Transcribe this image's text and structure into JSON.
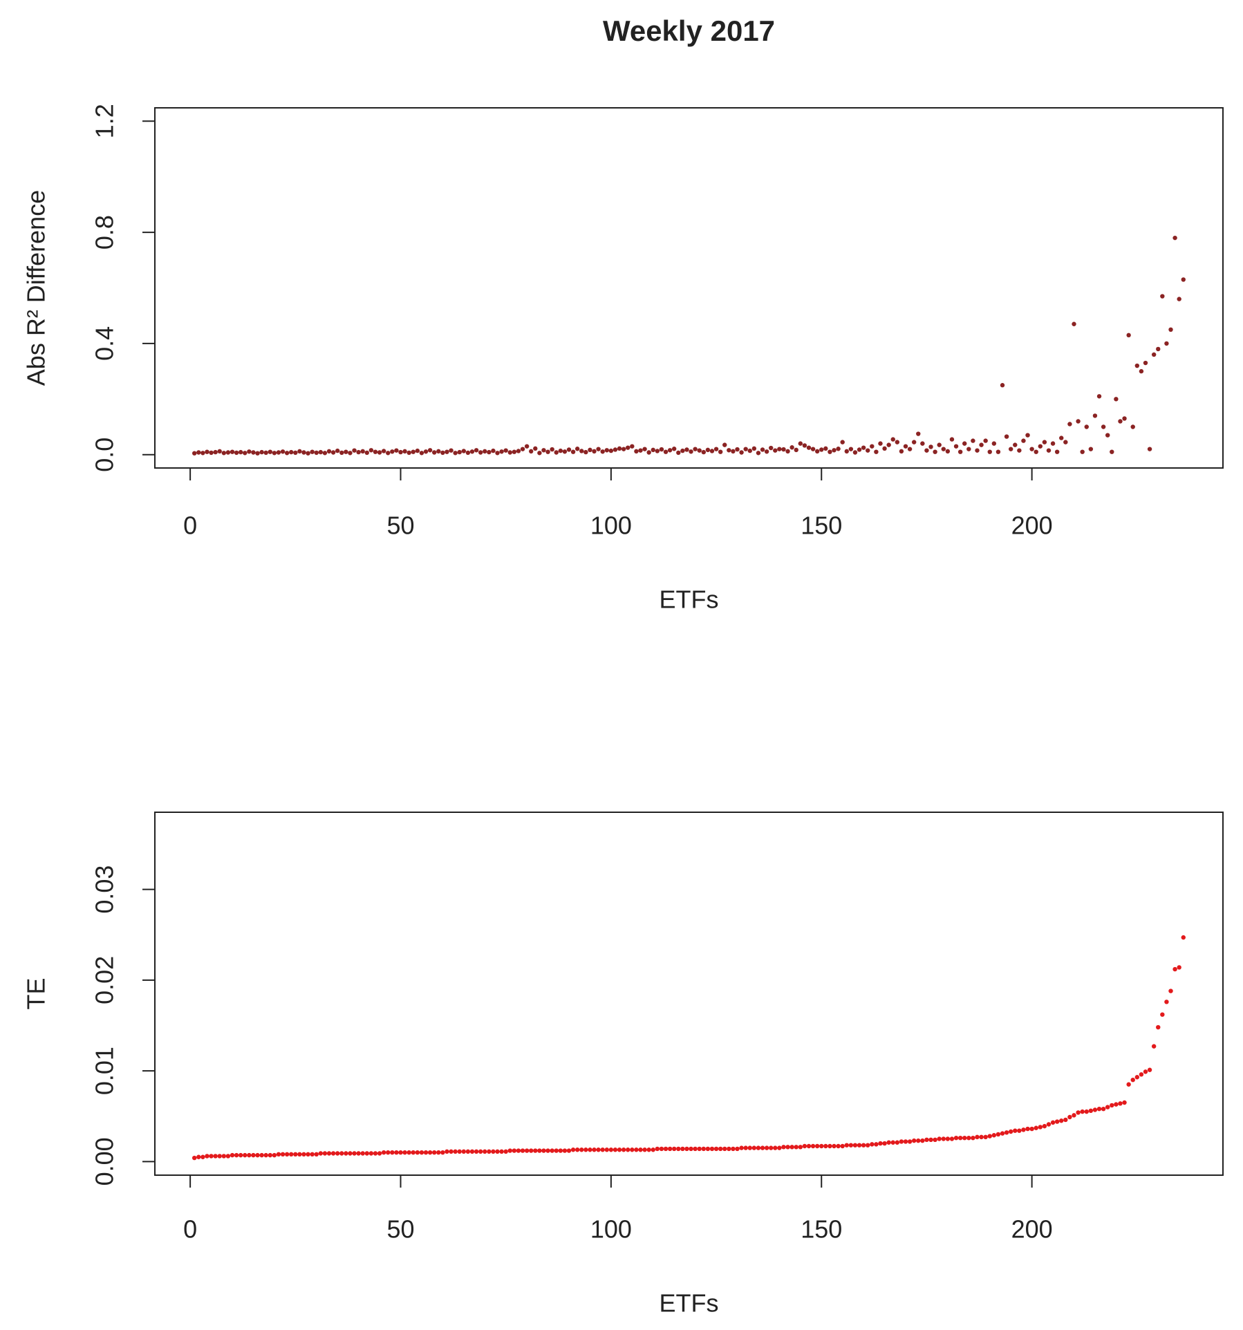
{
  "chart_data": [
    {
      "type": "scatter",
      "title": "Weekly 2017",
      "xlabel": "ETFs",
      "ylabel": "Abs R² Difference",
      "color": "#8b2323",
      "xlim": [
        -8.4,
        245.4
      ],
      "xticks": [
        0,
        50,
        100,
        150,
        200
      ],
      "ylim": [
        -0.048,
        1.248
      ],
      "yticks": [
        {
          "value": 0,
          "label": "0.0"
        },
        0.4,
        0.8,
        1.2
      ],
      "x": [
        1,
        2,
        3,
        4,
        5,
        6,
        7,
        8,
        9,
        10,
        11,
        12,
        13,
        14,
        15,
        16,
        17,
        18,
        19,
        20,
        21,
        22,
        23,
        24,
        25,
        26,
        27,
        28,
        29,
        30,
        31,
        32,
        33,
        34,
        35,
        36,
        37,
        38,
        39,
        40,
        41,
        42,
        43,
        44,
        45,
        46,
        47,
        48,
        49,
        50,
        51,
        52,
        53,
        54,
        55,
        56,
        57,
        58,
        59,
        60,
        61,
        62,
        63,
        64,
        65,
        66,
        67,
        68,
        69,
        70,
        71,
        72,
        73,
        74,
        75,
        76,
        77,
        78,
        79,
        80,
        81,
        82,
        83,
        84,
        85,
        86,
        87,
        88,
        89,
        90,
        91,
        92,
        93,
        94,
        95,
        96,
        97,
        98,
        99,
        100,
        101,
        102,
        103,
        104,
        105,
        106,
        107,
        108,
        109,
        110,
        111,
        112,
        113,
        114,
        115,
        116,
        117,
        118,
        119,
        120,
        121,
        122,
        123,
        124,
        125,
        126,
        127,
        128,
        129,
        130,
        131,
        132,
        133,
        134,
        135,
        136,
        137,
        138,
        139,
        140,
        141,
        142,
        143,
        144,
        145,
        146,
        147,
        148,
        149,
        150,
        151,
        152,
        153,
        154,
        155,
        156,
        157,
        158,
        159,
        160,
        161,
        162,
        163,
        164,
        165,
        166,
        167,
        168,
        169,
        170,
        171,
        172,
        173,
        174,
        175,
        176,
        177,
        178,
        179,
        180,
        181,
        182,
        183,
        184,
        185,
        186,
        187,
        188,
        189,
        190,
        191,
        192,
        193,
        194,
        195,
        196,
        197,
        198,
        199,
        200,
        201,
        202,
        203,
        204,
        205,
        206,
        207,
        208,
        209,
        210,
        211,
        212,
        213,
        214,
        215,
        216,
        217,
        218,
        219,
        220,
        221,
        222,
        223,
        224,
        225,
        226,
        227,
        228,
        229,
        230,
        231,
        232,
        233,
        234,
        235,
        236
      ],
      "values": [
        0.005,
        0.008,
        0.006,
        0.01,
        0.007,
        0.009,
        0.012,
        0.006,
        0.008,
        0.01,
        0.007,
        0.009,
        0.006,
        0.011,
        0.008,
        0.005,
        0.009,
        0.007,
        0.01,
        0.006,
        0.008,
        0.011,
        0.006,
        0.009,
        0.007,
        0.012,
        0.008,
        0.005,
        0.01,
        0.007,
        0.009,
        0.006,
        0.012,
        0.008,
        0.014,
        0.007,
        0.01,
        0.006,
        0.015,
        0.009,
        0.012,
        0.007,
        0.016,
        0.01,
        0.008,
        0.013,
        0.006,
        0.011,
        0.015,
        0.009,
        0.012,
        0.007,
        0.01,
        0.014,
        0.006,
        0.011,
        0.016,
        0.008,
        0.012,
        0.007,
        0.01,
        0.015,
        0.006,
        0.009,
        0.013,
        0.007,
        0.011,
        0.016,
        0.008,
        0.012,
        0.009,
        0.014,
        0.006,
        0.011,
        0.015,
        0.008,
        0.01,
        0.013,
        0.02,
        0.03,
        0.012,
        0.022,
        0.006,
        0.016,
        0.01,
        0.019,
        0.008,
        0.014,
        0.011,
        0.018,
        0.01,
        0.021,
        0.013,
        0.009,
        0.017,
        0.012,
        0.02,
        0.011,
        0.016,
        0.014,
        0.018,
        0.022,
        0.02,
        0.025,
        0.03,
        0.012,
        0.015,
        0.02,
        0.008,
        0.017,
        0.013,
        0.019,
        0.01,
        0.016,
        0.021,
        0.007,
        0.014,
        0.018,
        0.011,
        0.02,
        0.015,
        0.009,
        0.017,
        0.013,
        0.02,
        0.01,
        0.035,
        0.016,
        0.012,
        0.019,
        0.008,
        0.02,
        0.014,
        0.022,
        0.006,
        0.018,
        0.011,
        0.024,
        0.015,
        0.02,
        0.019,
        0.012,
        0.026,
        0.017,
        0.04,
        0.033,
        0.025,
        0.02,
        0.012,
        0.018,
        0.022,
        0.01,
        0.016,
        0.021,
        0.045,
        0.012,
        0.02,
        0.008,
        0.018,
        0.025,
        0.015,
        0.03,
        0.01,
        0.04,
        0.022,
        0.035,
        0.055,
        0.045,
        0.012,
        0.03,
        0.02,
        0.045,
        0.075,
        0.04,
        0.015,
        0.028,
        0.01,
        0.035,
        0.02,
        0.012,
        0.055,
        0.03,
        0.01,
        0.04,
        0.02,
        0.05,
        0.015,
        0.035,
        0.05,
        0.01,
        0.04,
        0.01,
        0.25,
        0.065,
        0.02,
        0.035,
        0.015,
        0.05,
        0.07,
        0.02,
        0.01,
        0.03,
        0.045,
        0.015,
        0.04,
        0.01,
        0.06,
        0.045,
        0.11,
        0.47,
        0.12,
        0.01,
        0.1,
        0.02,
        0.14,
        0.21,
        0.1,
        0.07,
        0.01,
        0.2,
        0.12,
        0.13,
        0.43,
        0.1,
        0.32,
        0.3,
        0.33,
        0.02,
        0.36,
        0.38,
        0.57,
        0.4,
        0.45,
        0.78,
        0.56,
        0.63
      ]
    },
    {
      "type": "scatter",
      "xlabel": "ETFs",
      "ylabel": "TE",
      "color": "#e31a1c",
      "xlim": [
        -8.4,
        245.4
      ],
      "xticks": [
        0,
        50,
        100,
        150,
        200
      ],
      "ylim": [
        -0.0015,
        0.0385
      ],
      "yticks": [
        {
          "value": 0,
          "label": "0.00"
        },
        0.01,
        0.02,
        0.03
      ],
      "x": [
        1,
        2,
        3,
        4,
        5,
        6,
        7,
        8,
        9,
        10,
        11,
        12,
        13,
        14,
        15,
        16,
        17,
        18,
        19,
        20,
        21,
        22,
        23,
        24,
        25,
        26,
        27,
        28,
        29,
        30,
        31,
        32,
        33,
        34,
        35,
        36,
        37,
        38,
        39,
        40,
        41,
        42,
        43,
        44,
        45,
        46,
        47,
        48,
        49,
        50,
        51,
        52,
        53,
        54,
        55,
        56,
        57,
        58,
        59,
        60,
        61,
        62,
        63,
        64,
        65,
        66,
        67,
        68,
        69,
        70,
        71,
        72,
        73,
        74,
        75,
        76,
        77,
        78,
        79,
        80,
        81,
        82,
        83,
        84,
        85,
        86,
        87,
        88,
        89,
        90,
        91,
        92,
        93,
        94,
        95,
        96,
        97,
        98,
        99,
        100,
        101,
        102,
        103,
        104,
        105,
        106,
        107,
        108,
        109,
        110,
        111,
        112,
        113,
        114,
        115,
        116,
        117,
        118,
        119,
        120,
        121,
        122,
        123,
        124,
        125,
        126,
        127,
        128,
        129,
        130,
        131,
        132,
        133,
        134,
        135,
        136,
        137,
        138,
        139,
        140,
        141,
        142,
        143,
        144,
        145,
        146,
        147,
        148,
        149,
        150,
        151,
        152,
        153,
        154,
        155,
        156,
        157,
        158,
        159,
        160,
        161,
        162,
        163,
        164,
        165,
        166,
        167,
        168,
        169,
        170,
        171,
        172,
        173,
        174,
        175,
        176,
        177,
        178,
        179,
        180,
        181,
        182,
        183,
        184,
        185,
        186,
        187,
        188,
        189,
        190,
        191,
        192,
        193,
        194,
        195,
        196,
        197,
        198,
        199,
        200,
        201,
        202,
        203,
        204,
        205,
        206,
        207,
        208,
        209,
        210,
        211,
        212,
        213,
        214,
        215,
        216,
        217,
        218,
        219,
        220,
        221,
        222,
        223,
        224,
        225,
        226,
        227,
        228,
        229,
        230,
        231,
        232,
        233,
        234,
        235,
        236
      ],
      "values": [
        0.0004,
        0.0005,
        0.0005,
        0.0006,
        0.0006,
        0.0006,
        0.0006,
        0.0006,
        0.0006,
        0.0007,
        0.0007,
        0.0007,
        0.0007,
        0.0007,
        0.0007,
        0.0007,
        0.0007,
        0.0007,
        0.0007,
        0.0007,
        0.0008,
        0.0008,
        0.0008,
        0.0008,
        0.0008,
        0.0008,
        0.0008,
        0.0008,
        0.0008,
        0.0008,
        0.0009,
        0.0009,
        0.0009,
        0.0009,
        0.0009,
        0.0009,
        0.0009,
        0.0009,
        0.0009,
        0.0009,
        0.0009,
        0.0009,
        0.0009,
        0.0009,
        0.0009,
        0.001,
        0.001,
        0.001,
        0.001,
        0.001,
        0.001,
        0.001,
        0.001,
        0.001,
        0.001,
        0.001,
        0.001,
        0.001,
        0.001,
        0.001,
        0.0011,
        0.0011,
        0.0011,
        0.0011,
        0.0011,
        0.0011,
        0.0011,
        0.0011,
        0.0011,
        0.0011,
        0.0011,
        0.0011,
        0.0011,
        0.0011,
        0.0011,
        0.0012,
        0.0012,
        0.0012,
        0.0012,
        0.0012,
        0.0012,
        0.0012,
        0.0012,
        0.0012,
        0.0012,
        0.0012,
        0.0012,
        0.0012,
        0.0012,
        0.0012,
        0.0013,
        0.0013,
        0.0013,
        0.0013,
        0.0013,
        0.0013,
        0.0013,
        0.0013,
        0.0013,
        0.0013,
        0.0013,
        0.0013,
        0.0013,
        0.0013,
        0.0013,
        0.0013,
        0.0013,
        0.0013,
        0.0013,
        0.0013,
        0.0014,
        0.0014,
        0.0014,
        0.0014,
        0.0014,
        0.0014,
        0.0014,
        0.0014,
        0.0014,
        0.0014,
        0.0014,
        0.0014,
        0.0014,
        0.0014,
        0.0014,
        0.0014,
        0.0014,
        0.0014,
        0.0014,
        0.0014,
        0.0015,
        0.0015,
        0.0015,
        0.0015,
        0.0015,
        0.0015,
        0.0015,
        0.0015,
        0.0015,
        0.0015,
        0.0016,
        0.0016,
        0.0016,
        0.0016,
        0.0016,
        0.0017,
        0.0017,
        0.0017,
        0.0017,
        0.0017,
        0.0017,
        0.0017,
        0.0017,
        0.0017,
        0.0017,
        0.0018,
        0.0018,
        0.0018,
        0.0018,
        0.0018,
        0.0018,
        0.0019,
        0.0019,
        0.002,
        0.002,
        0.0021,
        0.0021,
        0.0021,
        0.0022,
        0.0022,
        0.0022,
        0.0023,
        0.0023,
        0.0023,
        0.0024,
        0.0024,
        0.0024,
        0.0025,
        0.0025,
        0.0025,
        0.0025,
        0.0026,
        0.0026,
        0.0026,
        0.0026,
        0.0026,
        0.0027,
        0.0027,
        0.0027,
        0.0028,
        0.0029,
        0.003,
        0.0031,
        0.0032,
        0.0033,
        0.0034,
        0.0034,
        0.0035,
        0.0036,
        0.0036,
        0.0037,
        0.0038,
        0.0039,
        0.0041,
        0.0043,
        0.0044,
        0.0045,
        0.0046,
        0.0049,
        0.0051,
        0.0054,
        0.0055,
        0.0055,
        0.0056,
        0.0057,
        0.0058,
        0.0058,
        0.006,
        0.0062,
        0.0063,
        0.0064,
        0.0065,
        0.0085,
        0.009,
        0.0093,
        0.0096,
        0.0099,
        0.0101,
        0.0127,
        0.0148,
        0.0162,
        0.0176,
        0.0188,
        0.0212,
        0.0214,
        0.0247
      ]
    }
  ]
}
